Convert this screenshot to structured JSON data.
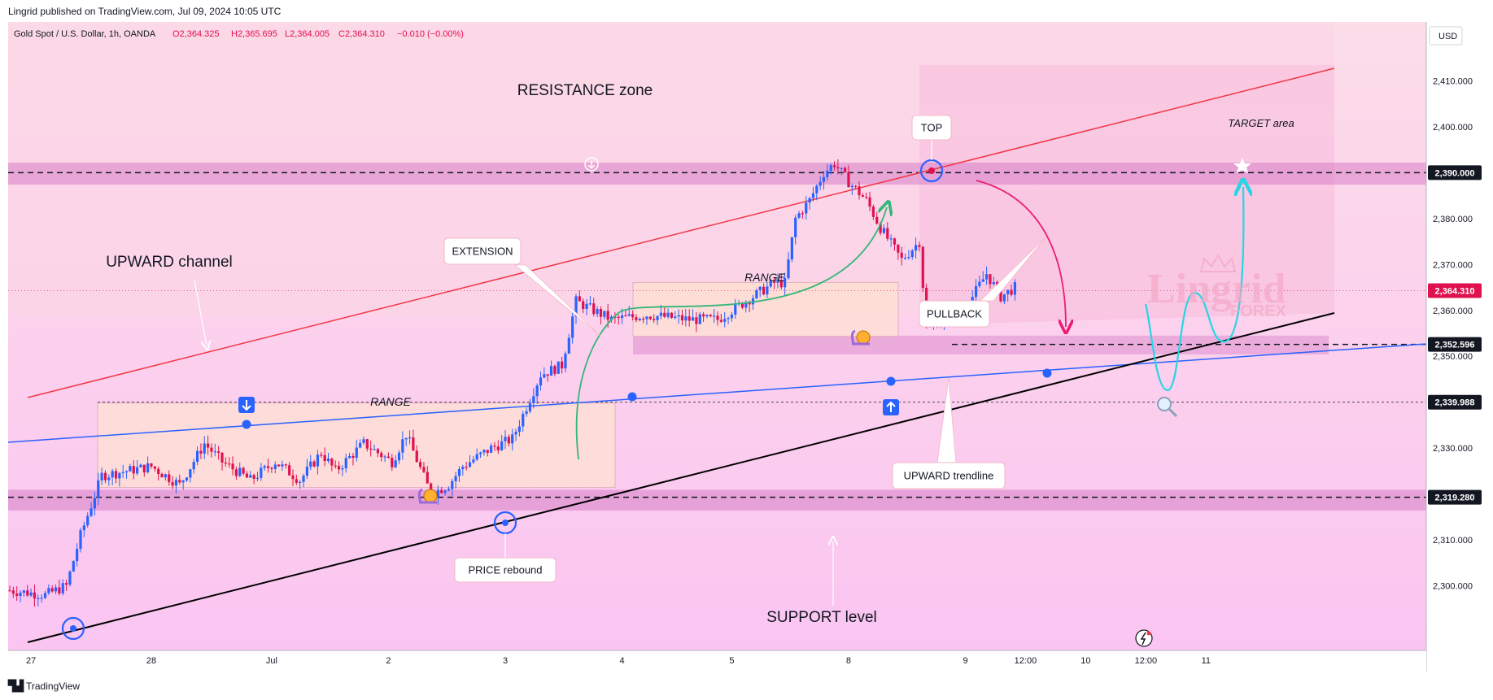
{
  "header": {
    "published": "Lingrid published on TradingView.com, Jul 09, 2024 10:05 UTC"
  },
  "footer": {
    "brand": "TradingView"
  },
  "watermark": {
    "text": "Lingrid",
    "sub": "FOREX"
  },
  "chart_data": {
    "type": "candlestick",
    "symbol": "Gold Spot / U.S. Dollar, 1h, OANDA",
    "ohlc": {
      "o": "O2,364.325",
      "h": "H2,365.695",
      "l": "L2,364.005",
      "c": "C2,364.310",
      "chg": "−0.010 (−0.00%)"
    },
    "currency": "USD",
    "ylim": [
      2293,
      2417
    ],
    "xlim": [
      0,
      372
    ],
    "y_ticks": [
      2300,
      2310,
      2320,
      2330,
      2340,
      2350,
      2360,
      2370,
      2380,
      2390,
      2400,
      2410
    ],
    "y_tick_labels": [
      "2,300.000",
      "2,310.000",
      "2,320.000",
      "2,330.000",
      "2,340.000",
      "2,350.000",
      "2,360.000",
      "2,370.000",
      "2,380.000",
      "2,390.000",
      "2,400.000",
      "2,410.000"
    ],
    "x_ticks": [
      {
        "t": 6,
        "label": "27"
      },
      {
        "t": 40,
        "label": "28"
      },
      {
        "t": 74,
        "label": "Jul"
      },
      {
        "t": 107,
        "label": "2"
      },
      {
        "t": 140,
        "label": "3"
      },
      {
        "t": 173,
        "label": "4"
      },
      {
        "t": 204,
        "label": "5"
      },
      {
        "t": 237,
        "label": "8"
      },
      {
        "t": 270,
        "label": "9"
      },
      {
        "t": 287,
        "label": "12:00"
      },
      {
        "t": 304,
        "label": "10"
      },
      {
        "t": 321,
        "label": "12:00"
      },
      {
        "t": 338,
        "label": "11"
      }
    ],
    "price_tags": [
      {
        "value": 2390.0,
        "label": "2,390.000",
        "style": "dark"
      },
      {
        "value": 2364.31,
        "label": "2,364.310",
        "style": "red"
      },
      {
        "value": 2352.596,
        "label": "2,352.596",
        "style": "dark"
      },
      {
        "value": 2339.988,
        "label": "2,339.988",
        "style": "dark"
      },
      {
        "value": 2319.28,
        "label": "2,319.280",
        "style": "dark"
      }
    ],
    "anchors": [
      {
        "t": 0,
        "p": 2299
      },
      {
        "t": 10,
        "p": 2298
      },
      {
        "t": 16,
        "p": 2300
      },
      {
        "t": 20,
        "p": 2311
      },
      {
        "t": 26,
        "p": 2324
      },
      {
        "t": 40,
        "p": 2326
      },
      {
        "t": 48,
        "p": 2322
      },
      {
        "t": 55,
        "p": 2331
      },
      {
        "t": 60,
        "p": 2327
      },
      {
        "t": 68,
        "p": 2323
      },
      {
        "t": 75,
        "p": 2327
      },
      {
        "t": 82,
        "p": 2323
      },
      {
        "t": 88,
        "p": 2329
      },
      {
        "t": 92,
        "p": 2325
      },
      {
        "t": 100,
        "p": 2331
      },
      {
        "t": 108,
        "p": 2327
      },
      {
        "t": 112,
        "p": 2333
      },
      {
        "t": 119,
        "p": 2320
      },
      {
        "t": 124,
        "p": 2322
      },
      {
        "t": 128,
        "p": 2326
      },
      {
        "t": 136,
        "p": 2330
      },
      {
        "t": 142,
        "p": 2332
      },
      {
        "t": 150,
        "p": 2346
      },
      {
        "t": 156,
        "p": 2348
      },
      {
        "t": 160,
        "p": 2362
      },
      {
        "t": 170,
        "p": 2358
      },
      {
        "t": 180,
        "p": 2359
      },
      {
        "t": 192,
        "p": 2358
      },
      {
        "t": 200,
        "p": 2358
      },
      {
        "t": 208,
        "p": 2362
      },
      {
        "t": 216,
        "p": 2366
      },
      {
        "t": 219,
        "p": 2366
      },
      {
        "t": 222,
        "p": 2380
      },
      {
        "t": 226,
        "p": 2384
      },
      {
        "t": 230,
        "p": 2390
      },
      {
        "t": 233,
        "p": 2392
      },
      {
        "t": 237,
        "p": 2388
      },
      {
        "t": 242,
        "p": 2384
      },
      {
        "t": 246,
        "p": 2378
      },
      {
        "t": 252,
        "p": 2371
      },
      {
        "t": 257,
        "p": 2375
      },
      {
        "t": 259,
        "p": 2356
      },
      {
        "t": 263,
        "p": 2358
      },
      {
        "t": 268,
        "p": 2360
      },
      {
        "t": 272,
        "p": 2363
      },
      {
        "t": 276,
        "p": 2368
      },
      {
        "t": 280,
        "p": 2363
      },
      {
        "t": 284,
        "p": 2365
      }
    ],
    "annotations": {
      "resistance_zone": "RESISTANCE zone",
      "target_area": "TARGET area",
      "top": "TOP",
      "upward_channel": "UPWARD channel",
      "extension": "EXTENSION",
      "range_1": "RANGE",
      "range_2": "RANGE",
      "pullback": "PULLBACK",
      "price_rebound": "PRICE rebound",
      "upward_trendline": "UPWARD trendline",
      "support_level": "SUPPORT level"
    },
    "colors": {
      "bull": "#2962ff",
      "bear": "#e0114f",
      "zone": "#d77fc7",
      "channel_top": "#f23645",
      "channel_mid": "#2962ff",
      "trendline": "#000000",
      "projection": "#24d6e6",
      "extension_curve": "#33b679",
      "pullback_curve": "#e91e73"
    }
  }
}
